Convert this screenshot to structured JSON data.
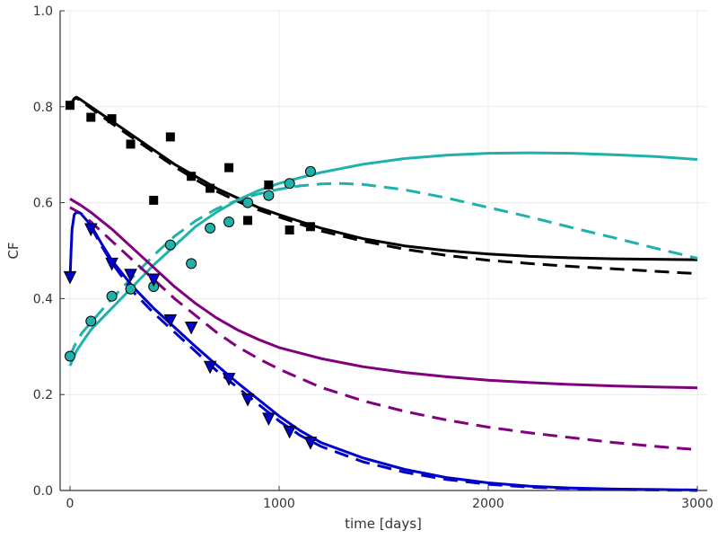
{
  "chart_data": {
    "type": "line",
    "title": "",
    "xlabel": "time [days]",
    "ylabel": "CF",
    "xlim": [
      -50,
      3050
    ],
    "ylim": [
      0,
      1
    ],
    "x_ticks": [
      0,
      1000,
      2000,
      3000
    ],
    "x_tick_labels": [
      "0",
      "1000",
      "2000",
      "3000"
    ],
    "y_ticks": [
      0,
      0.2,
      0.4,
      0.6,
      0.8,
      1.0
    ],
    "y_tick_labels": [
      "0.0",
      "0.2",
      "0.4",
      "0.6",
      "0.8",
      "1.0"
    ],
    "grid": true,
    "legend": "none",
    "series": [
      {
        "kind": "line",
        "style": "solid",
        "color": "#000000",
        "x": [
          0,
          10,
          20,
          30,
          50,
          100,
          200,
          300,
          400,
          500,
          600,
          700,
          800,
          900,
          1000,
          1200,
          1400,
          1600,
          1800,
          2000,
          2200,
          2400,
          2600,
          2800,
          3000
        ],
        "y": [
          0.8,
          0.81,
          0.817,
          0.82,
          0.815,
          0.8,
          0.77,
          0.74,
          0.71,
          0.68,
          0.655,
          0.63,
          0.61,
          0.59,
          0.575,
          0.547,
          0.525,
          0.51,
          0.5,
          0.493,
          0.488,
          0.485,
          0.483,
          0.482,
          0.481
        ]
      },
      {
        "kind": "line",
        "style": "dashed",
        "color": "#000000",
        "x": [
          0,
          10,
          20,
          30,
          50,
          100,
          200,
          300,
          400,
          500,
          600,
          700,
          800,
          900,
          1000,
          1200,
          1400,
          1600,
          1800,
          2000,
          2200,
          2400,
          2600,
          2800,
          3000
        ],
        "y": [
          0.8,
          0.81,
          0.816,
          0.818,
          0.813,
          0.797,
          0.765,
          0.735,
          0.705,
          0.675,
          0.648,
          0.624,
          0.603,
          0.585,
          0.57,
          0.541,
          0.52,
          0.503,
          0.49,
          0.48,
          0.473,
          0.467,
          0.462,
          0.457,
          0.452
        ]
      },
      {
        "kind": "line",
        "style": "solid",
        "color": "#20b2aa",
        "x": [
          0,
          10,
          30,
          60,
          100,
          200,
          300,
          400,
          500,
          600,
          700,
          800,
          900,
          1000,
          1100,
          1200,
          1400,
          1600,
          1800,
          2000,
          2200,
          2400,
          2600,
          2800,
          3000
        ],
        "y": [
          0.26,
          0.27,
          0.29,
          0.31,
          0.335,
          0.38,
          0.425,
          0.47,
          0.51,
          0.55,
          0.58,
          0.605,
          0.625,
          0.64,
          0.652,
          0.663,
          0.68,
          0.692,
          0.699,
          0.703,
          0.704,
          0.703,
          0.7,
          0.696,
          0.69
        ]
      },
      {
        "kind": "line",
        "style": "dashed",
        "color": "#20b2aa",
        "x": [
          0,
          10,
          30,
          60,
          100,
          200,
          300,
          400,
          500,
          600,
          700,
          800,
          900,
          1000,
          1100,
          1200,
          1300,
          1400,
          1600,
          1800,
          2000,
          2200,
          2400,
          2600,
          2800,
          3000
        ],
        "y": [
          0.28,
          0.29,
          0.31,
          0.33,
          0.35,
          0.4,
          0.445,
          0.49,
          0.53,
          0.562,
          0.587,
          0.605,
          0.618,
          0.628,
          0.635,
          0.639,
          0.64,
          0.638,
          0.627,
          0.61,
          0.59,
          0.57,
          0.548,
          0.527,
          0.505,
          0.484
        ]
      },
      {
        "kind": "line",
        "style": "solid",
        "color": "#800080",
        "x": [
          0,
          50,
          100,
          200,
          300,
          400,
          500,
          600,
          700,
          800,
          900,
          1000,
          1200,
          1400,
          1600,
          1800,
          2000,
          2200,
          2400,
          2600,
          2800,
          3000
        ],
        "y": [
          0.608,
          0.595,
          0.58,
          0.545,
          0.505,
          0.465,
          0.425,
          0.39,
          0.36,
          0.335,
          0.315,
          0.298,
          0.275,
          0.258,
          0.246,
          0.237,
          0.23,
          0.225,
          0.221,
          0.218,
          0.216,
          0.214
        ]
      },
      {
        "kind": "line",
        "style": "dashed",
        "color": "#800080",
        "x": [
          0,
          50,
          100,
          200,
          300,
          400,
          500,
          600,
          700,
          800,
          900,
          1000,
          1200,
          1400,
          1600,
          1800,
          2000,
          2200,
          2400,
          2600,
          2800,
          3000
        ],
        "y": [
          0.59,
          0.578,
          0.56,
          0.52,
          0.48,
          0.44,
          0.4,
          0.365,
          0.33,
          0.3,
          0.275,
          0.253,
          0.215,
          0.187,
          0.165,
          0.147,
          0.132,
          0.12,
          0.11,
          0.1,
          0.092,
          0.085
        ]
      },
      {
        "kind": "line",
        "style": "solid",
        "color": "#0000c8",
        "x": [
          0,
          5,
          10,
          20,
          30,
          50,
          100,
          150,
          200,
          300,
          400,
          500,
          600,
          700,
          800,
          900,
          1000,
          1100,
          1200,
          1400,
          1600,
          1800,
          2000,
          2200,
          2400,
          2600,
          2800,
          3000
        ],
        "y": [
          0.44,
          0.5,
          0.545,
          0.575,
          0.58,
          0.578,
          0.553,
          0.515,
          0.48,
          0.425,
          0.38,
          0.34,
          0.3,
          0.262,
          0.225,
          0.19,
          0.155,
          0.125,
          0.1,
          0.068,
          0.044,
          0.027,
          0.016,
          0.009,
          0.005,
          0.003,
          0.002,
          0.001
        ]
      },
      {
        "kind": "line",
        "style": "dashed",
        "color": "#0000c8",
        "x": [
          100,
          150,
          200,
          300,
          400,
          500,
          600,
          700,
          800,
          900,
          1000,
          1100,
          1200,
          1400,
          1600,
          1800,
          2000,
          2200,
          2400,
          2600,
          2800,
          3000
        ],
        "y": [
          0.55,
          0.51,
          0.475,
          0.415,
          0.37,
          0.33,
          0.29,
          0.25,
          0.215,
          0.18,
          0.145,
          0.115,
          0.092,
          0.06,
          0.038,
          0.023,
          0.013,
          0.007,
          0.004,
          0.002,
          0.001,
          0.0
        ]
      },
      {
        "kind": "markers",
        "marker": "square",
        "color": "#000000",
        "x": [
          0,
          100,
          200,
          290,
          400,
          480,
          580,
          670,
          760,
          850,
          950,
          1050,
          1150
        ],
        "y": [
          0.803,
          0.778,
          0.775,
          0.722,
          0.605,
          0.737,
          0.655,
          0.63,
          0.673,
          0.563,
          0.637,
          0.543,
          0.55
        ]
      },
      {
        "kind": "markers",
        "marker": "circle",
        "color": "#20b2aa",
        "x": [
          0,
          100,
          200,
          290,
          400,
          480,
          580,
          670,
          760,
          850,
          950,
          1050,
          1150
        ],
        "y": [
          0.28,
          0.353,
          0.405,
          0.42,
          0.425,
          0.512,
          0.473,
          0.547,
          0.56,
          0.6,
          0.615,
          0.64,
          0.665
        ]
      },
      {
        "kind": "markers",
        "marker": "triangle-down",
        "color": "#0000c8",
        "x": [
          0,
          100,
          200,
          290,
          400,
          480,
          580,
          670,
          760,
          850,
          950,
          1050,
          1150
        ],
        "y": [
          0.445,
          0.545,
          0.473,
          0.45,
          0.44,
          0.355,
          0.34,
          0.258,
          0.233,
          0.19,
          0.15,
          0.123,
          0.1
        ]
      }
    ]
  }
}
